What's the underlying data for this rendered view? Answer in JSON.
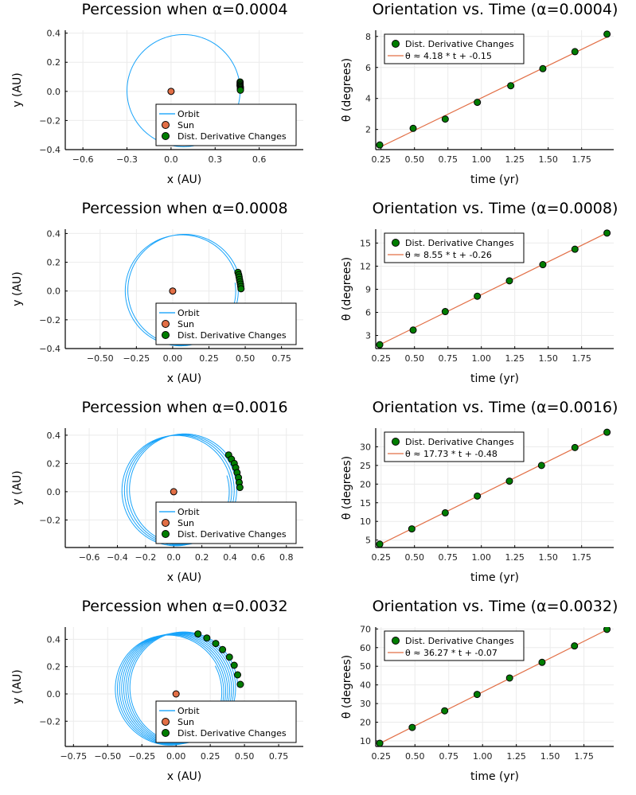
{
  "colors": {
    "orbit": "#009af9",
    "sun": "#e26f46",
    "derivative_points": "#007d00",
    "fit_line": "#e26f46",
    "grid": "#ebebeb",
    "axis": "#000000"
  },
  "chart_data": [
    {
      "type": "scatter",
      "panel": "orbit",
      "title": "Percession when α=0.0004",
      "xlabel": "x (AU)",
      "ylabel": "y (AU)",
      "xlim": [
        -0.72,
        0.9
      ],
      "ylim": [
        -0.4,
        0.42
      ],
      "xticks": [
        -0.6,
        -0.3,
        0.0,
        0.3,
        0.6
      ],
      "xtick_labels": [
        "−0.6",
        "−0.3",
        "0.0",
        "0.3",
        "0.6"
      ],
      "yticks": [
        -0.4,
        -0.2,
        0.0,
        0.2,
        0.4
      ],
      "ytick_labels": [
        "−0.4",
        "−0.2",
        "0.0",
        "0.2",
        "0.4"
      ],
      "grid": true,
      "legend_position": "bottom-right",
      "legend": [
        "Orbit",
        "Sun",
        "Dist. Derivative Changes"
      ],
      "orbit": {
        "center": [
          0.085,
          0.005
        ],
        "rx": 0.385,
        "ry": 0.385,
        "turns": 1,
        "drift": 0.0
      },
      "sun": [
        0.0,
        0.0
      ],
      "points": [
        [
          0.47,
          0.065
        ],
        [
          0.47,
          0.055
        ],
        [
          0.47,
          0.045
        ],
        [
          0.47,
          0.037
        ],
        [
          0.472,
          0.03
        ],
        [
          0.472,
          0.022
        ],
        [
          0.472,
          0.015
        ],
        [
          0.472,
          0.008
        ]
      ]
    },
    {
      "type": "line",
      "panel": "fit",
      "title": "Orientation vs. Time (α=0.0004)",
      "xlabel": "time (yr)",
      "ylabel": "θ (degrees)",
      "xlim": [
        0.21,
        1.99
      ],
      "ylim": [
        0.7,
        8.4
      ],
      "xticks": [
        0.25,
        0.5,
        0.75,
        1.0,
        1.25,
        1.5,
        1.75
      ],
      "xtick_labels": [
        "0.25",
        "0.50",
        "0.75",
        "1.00",
        "1.25",
        "1.50",
        "1.75"
      ],
      "yticks": [
        2,
        4,
        6,
        8
      ],
      "ytick_labels": [
        "2",
        "4",
        "6",
        "8"
      ],
      "grid": true,
      "legend_position": "top-left",
      "legend": [
        "Dist. Derivative Changes",
        "θ ≈ 4.18 * t + -0.15"
      ],
      "fit": {
        "slope": 4.18,
        "intercept": -0.15
      },
      "x": [
        0.24,
        0.49,
        0.73,
        0.97,
        1.22,
        1.46,
        1.7,
        1.94
      ],
      "y": [
        1.0,
        2.07,
        2.67,
        3.75,
        4.82,
        5.92,
        7.02,
        8.15
      ]
    },
    {
      "type": "scatter",
      "panel": "orbit",
      "title": "Percession when α=0.0008",
      "xlabel": "x (AU)",
      "ylabel": "y (AU)",
      "xlim": [
        -0.74,
        0.9
      ],
      "ylim": [
        -0.4,
        0.43
      ],
      "xticks": [
        -0.5,
        -0.25,
        0.0,
        0.25,
        0.5,
        0.75
      ],
      "xtick_labels": [
        "−0.50",
        "−0.25",
        "0.00",
        "0.25",
        "0.50",
        "0.75"
      ],
      "yticks": [
        -0.4,
        -0.2,
        0.0,
        0.2,
        0.4
      ],
      "ytick_labels": [
        "−0.4",
        "−0.2",
        "0.0",
        "0.2",
        "0.4"
      ],
      "grid": true,
      "legend_position": "bottom-right",
      "legend": [
        "Orbit",
        "Sun",
        "Dist. Derivative Changes"
      ],
      "orbit": {
        "center": [
          0.085,
          0.01
        ],
        "rx": 0.385,
        "ry": 0.385,
        "turns": 2,
        "drift": 0.012
      },
      "sun": [
        0.0,
        0.0
      ],
      "points": [
        [
          0.45,
          0.13
        ],
        [
          0.455,
          0.113
        ],
        [
          0.458,
          0.097
        ],
        [
          0.461,
          0.08
        ],
        [
          0.464,
          0.064
        ],
        [
          0.467,
          0.048
        ],
        [
          0.469,
          0.032
        ],
        [
          0.471,
          0.016
        ]
      ]
    },
    {
      "type": "line",
      "panel": "fit",
      "title": "Orientation vs. Time (α=0.0008)",
      "xlabel": "time (yr)",
      "ylabel": "θ (degrees)",
      "xlim": [
        0.21,
        1.99
      ],
      "ylim": [
        1.3,
        16.8
      ],
      "xticks": [
        0.25,
        0.5,
        0.75,
        1.0,
        1.25,
        1.5,
        1.75
      ],
      "xtick_labels": [
        "0.25",
        "0.50",
        "0.75",
        "1.00",
        "1.25",
        "1.50",
        "1.75"
      ],
      "yticks": [
        3,
        6,
        9,
        12,
        15
      ],
      "ytick_labels": [
        "3",
        "6",
        "9",
        "12",
        "15"
      ],
      "grid": true,
      "legend_position": "top-left",
      "legend": [
        "Dist. Derivative Changes",
        "θ ≈ 8.55 * t + -0.26"
      ],
      "fit": {
        "slope": 8.55,
        "intercept": -0.26
      },
      "x": [
        0.24,
        0.49,
        0.73,
        0.97,
        1.21,
        1.46,
        1.7,
        1.94
      ],
      "y": [
        1.8,
        3.7,
        6.1,
        8.1,
        10.1,
        12.2,
        14.2,
        16.3
      ]
    },
    {
      "type": "scatter",
      "panel": "orbit",
      "title": "Percession when α=0.0016",
      "xlabel": "x (AU)",
      "ylabel": "y (AU)",
      "xlim": [
        -0.77,
        0.92
      ],
      "ylim": [
        -0.395,
        0.45
      ],
      "xticks": [
        -0.6,
        -0.4,
        -0.2,
        0.0,
        0.2,
        0.4,
        0.6,
        0.8
      ],
      "xtick_labels": [
        "−0.6",
        "−0.4",
        "−0.2",
        "0.0",
        "0.2",
        "0.4",
        "0.6",
        "0.8"
      ],
      "yticks": [
        -0.2,
        0.0,
        0.2,
        0.4
      ],
      "ytick_labels": [
        "−0.2",
        "0.0",
        "0.2",
        "0.4"
      ],
      "grid": true,
      "legend_position": "bottom-right",
      "legend": [
        "Orbit",
        "Sun",
        "Dist. Derivative Changes"
      ],
      "orbit": {
        "center": [
          0.08,
          0.02
        ],
        "rx": 0.385,
        "ry": 0.39,
        "turns": 4,
        "drift": 0.012
      },
      "sun": [
        0.0,
        0.0
      ],
      "points": [
        [
          0.39,
          0.26
        ],
        [
          0.41,
          0.23
        ],
        [
          0.43,
          0.2
        ],
        [
          0.44,
          0.17
        ],
        [
          0.45,
          0.135
        ],
        [
          0.46,
          0.1
        ],
        [
          0.465,
          0.065
        ],
        [
          0.47,
          0.03
        ]
      ]
    },
    {
      "type": "line",
      "panel": "fit",
      "title": "Orientation vs. Time (α=0.0016)",
      "xlabel": "time (yr)",
      "ylabel": "θ (degrees)",
      "xlim": [
        0.21,
        1.99
      ],
      "ylim": [
        3.0,
        35.0
      ],
      "xticks": [
        0.25,
        0.5,
        0.75,
        1.0,
        1.25,
        1.5,
        1.75
      ],
      "xtick_labels": [
        "0.25",
        "0.50",
        "0.75",
        "1.00",
        "1.25",
        "1.50",
        "1.75"
      ],
      "yticks": [
        5,
        10,
        15,
        20,
        25,
        30
      ],
      "ytick_labels": [
        "5",
        "10",
        "15",
        "20",
        "25",
        "30"
      ],
      "grid": true,
      "legend_position": "top-left",
      "legend": [
        "Dist. Derivative Changes",
        "θ ≈ 17.73 * t + -0.48"
      ],
      "fit": {
        "slope": 17.73,
        "intercept": -0.48
      },
      "x": [
        0.24,
        0.48,
        0.73,
        0.97,
        1.21,
        1.45,
        1.7,
        1.94
      ],
      "y": [
        3.9,
        8.0,
        12.3,
        16.8,
        20.8,
        25.0,
        29.8,
        33.9
      ]
    },
    {
      "type": "scatter",
      "panel": "orbit",
      "title": "Percession when α=0.0032",
      "xlabel": "x (AU)",
      "ylabel": "y (AU)",
      "xlim": [
        -0.81,
        0.93
      ],
      "ylim": [
        -0.385,
        0.49
      ],
      "xticks": [
        -0.75,
        -0.5,
        -0.25,
        0.0,
        0.25,
        0.5,
        0.75
      ],
      "xtick_labels": [
        "−0.75",
        "−0.50",
        "−0.25",
        "0.00",
        "0.25",
        "0.50",
        "0.75"
      ],
      "yticks": [
        -0.2,
        0.0,
        0.2,
        0.4
      ],
      "ytick_labels": [
        "−0.2",
        "0.0",
        "0.2",
        "0.4"
      ],
      "grid": true,
      "legend_position": "bottom-right",
      "legend": [
        "Orbit",
        "Sun",
        "Dist. Derivative Changes"
      ],
      "orbit": {
        "center": [
          0.06,
          0.05
        ],
        "rx": 0.39,
        "ry": 0.405,
        "turns": 8,
        "drift": 0.01
      },
      "sun": [
        0.0,
        0.0
      ],
      "points": [
        [
          0.16,
          0.44
        ],
        [
          0.225,
          0.41
        ],
        [
          0.29,
          0.37
        ],
        [
          0.34,
          0.325
        ],
        [
          0.39,
          0.27
        ],
        [
          0.425,
          0.21
        ],
        [
          0.45,
          0.14
        ],
        [
          0.47,
          0.07
        ]
      ]
    },
    {
      "type": "line",
      "panel": "fit",
      "title": "Orientation vs. Time (α=0.0032)",
      "xlabel": "time (yr)",
      "ylabel": "θ (degrees)",
      "xlim": [
        0.21,
        1.97
      ],
      "ylim": [
        7.0,
        71.0
      ],
      "xticks": [
        0.25,
        0.5,
        0.75,
        1.0,
        1.25,
        1.5,
        1.75
      ],
      "xtick_labels": [
        "0.25",
        "0.50",
        "0.75",
        "1.00",
        "1.25",
        "1.50",
        "1.75"
      ],
      "yticks": [
        10,
        20,
        30,
        40,
        50,
        60,
        70
      ],
      "ytick_labels": [
        "10",
        "20",
        "30",
        "40",
        "50",
        "60",
        "70"
      ],
      "grid": true,
      "legend_position": "top-left",
      "legend": [
        "Dist. Derivative Changes",
        "θ ≈ 36.27 * t + -0.07"
      ],
      "fit": {
        "slope": 36.27,
        "intercept": -0.07
      },
      "x": [
        0.24,
        0.48,
        0.72,
        0.96,
        1.2,
        1.44,
        1.68,
        1.92
      ],
      "y": [
        8.7,
        17.2,
        26.1,
        34.9,
        43.7,
        52.1,
        60.9,
        69.8
      ]
    }
  ]
}
